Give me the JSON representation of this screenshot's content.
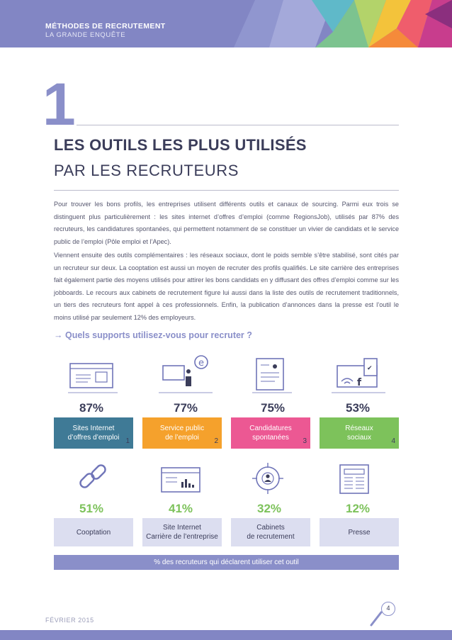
{
  "header": {
    "kicker": "MÉTHODES DE RECRUTEMENT",
    "subkicker": "LA GRANDE ENQUÊTE"
  },
  "section": {
    "number": "1",
    "title_line1": "LES OUTILS LES PLUS UTILISÉS",
    "title_line2": "PAR LES RECRUTEURS"
  },
  "paragraphs": {
    "p1": "Pour trouver les bons profils, les entreprises utilisent différents outils et canaux de sourcing. Parmi eux trois se distinguent plus particulièrement : les sites internet d’offres d’emploi (comme RegionsJob), utilisés par 87% des recruteurs, les candidatures spontanées, qui permettent notamment de se constituer un vivier de candidats et le service public de l’emploi (Pôle emploi et l’Apec).",
    "p2": "Viennent ensuite des outils complémentaires : les réseaux sociaux, dont le poids semble s’être stabilisé, sont cités par un recruteur sur deux. La cooptation est aussi un moyen de recruter des profils qualifiés. Le site carrière des entreprises fait également partie des moyens utilisés pour attirer les bons candidats en y diffusant des offres d’emploi comme sur les jobboards. Le recours aux cabinets de recrutement figure lui aussi dans la liste des outils de recrutement traditionnels, un tiers des recruteurs font appel à ces professionnels. Enfin, la publication d’annonces dans la presse est l’outil le moins utilisé par seulement 12% des employeurs."
  },
  "question": "→ Quels supports utilisez-vous pour recruter ?",
  "top_tools": [
    {
      "pct": "87%",
      "line1": "Sites Internet",
      "line2": "d’offres d’emploi",
      "rank": "1",
      "color": "#3f7a96",
      "icon": "job-site-icon"
    },
    {
      "pct": "77%",
      "line1": "Service public",
      "line2": "de l’emploi",
      "rank": "2",
      "color": "#f5a12c",
      "icon": "public-service-icon"
    },
    {
      "pct": "75%",
      "line1": "Candidatures",
      "line2": "spontanées",
      "rank": "3",
      "color": "#ec5893",
      "icon": "resume-icon"
    },
    {
      "pct": "53%",
      "line1": "Réseaux",
      "line2": "sociaux",
      "rank": "4",
      "color": "#7dc25b",
      "icon": "social-network-icon"
    }
  ],
  "other_tools": [
    {
      "pct": "51%",
      "line1": "Cooptation",
      "line2": "",
      "icon": "chain-link-icon"
    },
    {
      "pct": "41%",
      "line1": "Site Internet",
      "line2": "Carrière de l’entreprise",
      "icon": "career-site-icon"
    },
    {
      "pct": "32%",
      "line1": "Cabinets",
      "line2": "de recrutement",
      "icon": "target-person-icon"
    },
    {
      "pct": "12%",
      "line1": "Presse",
      "line2": "",
      "icon": "newspaper-icon"
    }
  ],
  "legend": "% des recruteurs qui déclarent utiliser cet outil",
  "footer": {
    "date": "FÉVRIER 2015",
    "page": "4"
  }
}
